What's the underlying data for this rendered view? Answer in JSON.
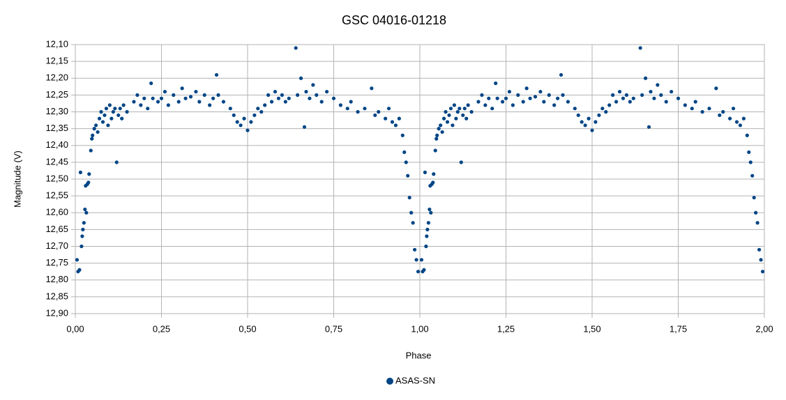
{
  "chart_data": {
    "type": "scatter",
    "title": "GSC 04016-01218",
    "x_label": "Phase",
    "y_label": "Magnitude (V)",
    "xlim": [
      0,
      2
    ],
    "ylim": [
      12.9,
      12.1
    ],
    "y_inverted": true,
    "grid": true,
    "legend": "bottom",
    "xticks": [
      {
        "value": 0,
        "label": "0,00"
      },
      {
        "value": 0.25,
        "label": "0,25"
      },
      {
        "value": 0.5,
        "label": "0,50"
      },
      {
        "value": 0.75,
        "label": "0,75"
      },
      {
        "value": 1,
        "label": "1,00"
      },
      {
        "value": 1.25,
        "label": "1,25"
      },
      {
        "value": 1.5,
        "label": "1,50"
      },
      {
        "value": 1.75,
        "label": "1,75"
      },
      {
        "value": 2,
        "label": "2,00"
      }
    ],
    "yticks": [
      {
        "value": 12.1,
        "label": "12,10"
      },
      {
        "value": 12.15,
        "label": "12,15"
      },
      {
        "value": 12.2,
        "label": "12,20"
      },
      {
        "value": 12.25,
        "label": "12,25"
      },
      {
        "value": 12.3,
        "label": "12,30"
      },
      {
        "value": 12.35,
        "label": "12,35"
      },
      {
        "value": 12.4,
        "label": "12,40"
      },
      {
        "value": 12.45,
        "label": "12,45"
      },
      {
        "value": 12.5,
        "label": "12,50"
      },
      {
        "value": 12.55,
        "label": "12,55"
      },
      {
        "value": 12.6,
        "label": "12,60"
      },
      {
        "value": 12.65,
        "label": "12,65"
      },
      {
        "value": 12.7,
        "label": "12,70"
      },
      {
        "value": 12.75,
        "label": "12,75"
      },
      {
        "value": 12.8,
        "label": "12,80"
      },
      {
        "value": 12.85,
        "label": "12,85"
      },
      {
        "value": 12.9,
        "label": "12,90"
      }
    ],
    "series": [
      {
        "name": "ASAS-SN",
        "color": "#004586",
        "x": [
          0.005,
          0.008,
          0.012,
          0.015,
          0.018,
          0.02,
          0.022,
          0.025,
          0.028,
          0.03,
          0.032,
          0.035,
          0.038,
          0.04,
          0.045,
          0.048,
          0.05,
          0.055,
          0.06,
          0.065,
          0.07,
          0.075,
          0.08,
          0.085,
          0.09,
          0.095,
          0.1,
          0.105,
          0.11,
          0.115,
          0.12,
          0.125,
          0.13,
          0.135,
          0.14,
          0.15,
          0.17,
          0.18,
          0.19,
          0.2,
          0.21,
          0.22,
          0.225,
          0.24,
          0.25,
          0.26,
          0.27,
          0.285,
          0.3,
          0.31,
          0.32,
          0.335,
          0.35,
          0.36,
          0.375,
          0.39,
          0.4,
          0.41,
          0.415,
          0.43,
          0.45,
          0.46,
          0.47,
          0.48,
          0.49,
          0.5,
          0.51,
          0.52,
          0.53,
          0.54,
          0.55,
          0.56,
          0.57,
          0.58,
          0.59,
          0.6,
          0.61,
          0.62,
          0.64,
          0.645,
          0.655,
          0.665,
          0.67,
          0.68,
          0.69,
          0.7,
          0.715,
          0.73,
          0.75,
          0.77,
          0.79,
          0.8,
          0.82,
          0.84,
          0.86,
          0.87,
          0.88,
          0.9,
          0.91,
          0.92,
          0.93,
          0.94,
          0.95,
          0.955,
          0.96,
          0.965,
          0.97,
          0.975,
          0.98,
          0.985,
          0.99,
          0.995,
          1.005,
          1.008,
          1.012,
          1.015,
          1.018,
          1.02,
          1.022,
          1.025,
          1.028,
          1.03,
          1.032,
          1.035,
          1.038,
          1.04,
          1.045,
          1.048,
          1.05,
          1.055,
          1.06,
          1.065,
          1.07,
          1.075,
          1.08,
          1.085,
          1.09,
          1.095,
          1.1,
          1.105,
          1.11,
          1.115,
          1.12,
          1.125,
          1.13,
          1.135,
          1.14,
          1.15,
          1.17,
          1.18,
          1.19,
          1.2,
          1.21,
          1.22,
          1.225,
          1.24,
          1.25,
          1.26,
          1.27,
          1.285,
          1.3,
          1.31,
          1.32,
          1.335,
          1.35,
          1.36,
          1.375,
          1.39,
          1.4,
          1.41,
          1.415,
          1.43,
          1.45,
          1.46,
          1.47,
          1.48,
          1.49,
          1.5,
          1.51,
          1.52,
          1.53,
          1.54,
          1.55,
          1.56,
          1.57,
          1.58,
          1.59,
          1.6,
          1.61,
          1.62,
          1.64,
          1.645,
          1.655,
          1.665,
          1.67,
          1.68,
          1.69,
          1.7,
          1.715,
          1.73,
          1.75,
          1.77,
          1.79,
          1.8,
          1.82,
          1.84,
          1.86,
          1.87,
          1.88,
          1.9,
          1.91,
          1.92,
          1.93,
          1.94,
          1.95,
          1.955,
          1.96,
          1.965,
          1.97,
          1.975,
          1.98,
          1.985,
          1.99,
          1.995
        ],
        "values": [
          12.74,
          12.775,
          12.77,
          12.48,
          12.7,
          12.67,
          12.65,
          12.63,
          12.59,
          12.52,
          12.6,
          12.515,
          12.51,
          12.485,
          12.415,
          12.38,
          12.37,
          12.35,
          12.34,
          12.36,
          12.32,
          12.3,
          12.33,
          12.31,
          12.29,
          12.34,
          12.28,
          12.32,
          12.3,
          12.29,
          12.45,
          12.31,
          12.29,
          12.32,
          12.28,
          12.3,
          12.27,
          12.25,
          12.28,
          12.26,
          12.29,
          12.215,
          12.26,
          12.27,
          12.26,
          12.24,
          12.28,
          12.25,
          12.27,
          12.23,
          12.26,
          12.255,
          12.24,
          12.27,
          12.25,
          12.28,
          12.26,
          12.19,
          12.25,
          12.27,
          12.29,
          12.31,
          12.33,
          12.34,
          12.32,
          12.355,
          12.33,
          12.31,
          12.29,
          12.3,
          12.28,
          12.25,
          12.27,
          12.24,
          12.26,
          12.25,
          12.27,
          12.26,
          12.11,
          12.25,
          12.2,
          12.345,
          12.24,
          12.26,
          12.22,
          12.25,
          12.27,
          12.24,
          12.26,
          12.28,
          12.29,
          12.27,
          12.3,
          12.29,
          12.23,
          12.31,
          12.3,
          12.32,
          12.29,
          12.33,
          12.34,
          12.32,
          12.37,
          12.42,
          12.45,
          12.49,
          12.555,
          12.6,
          12.63,
          12.71,
          12.74,
          12.775,
          12.74,
          12.775,
          12.77,
          12.48,
          12.7,
          12.67,
          12.65,
          12.63,
          12.59,
          12.52,
          12.6,
          12.515,
          12.51,
          12.485,
          12.415,
          12.38,
          12.37,
          12.35,
          12.34,
          12.36,
          12.32,
          12.3,
          12.33,
          12.31,
          12.29,
          12.34,
          12.28,
          12.32,
          12.3,
          12.29,
          12.45,
          12.31,
          12.29,
          12.32,
          12.28,
          12.3,
          12.27,
          12.25,
          12.28,
          12.26,
          12.29,
          12.215,
          12.26,
          12.27,
          12.26,
          12.24,
          12.28,
          12.25,
          12.27,
          12.23,
          12.26,
          12.255,
          12.24,
          12.27,
          12.25,
          12.28,
          12.26,
          12.19,
          12.25,
          12.27,
          12.29,
          12.31,
          12.33,
          12.34,
          12.32,
          12.355,
          12.33,
          12.31,
          12.29,
          12.3,
          12.28,
          12.25,
          12.27,
          12.24,
          12.26,
          12.25,
          12.27,
          12.26,
          12.11,
          12.25,
          12.2,
          12.345,
          12.24,
          12.26,
          12.22,
          12.25,
          12.27,
          12.24,
          12.26,
          12.28,
          12.29,
          12.27,
          12.3,
          12.29,
          12.23,
          12.31,
          12.3,
          12.32,
          12.29,
          12.33,
          12.34,
          12.32,
          12.37,
          12.42,
          12.45,
          12.49,
          12.555,
          12.6,
          12.63,
          12.71,
          12.74,
          12.775
        ]
      }
    ]
  }
}
